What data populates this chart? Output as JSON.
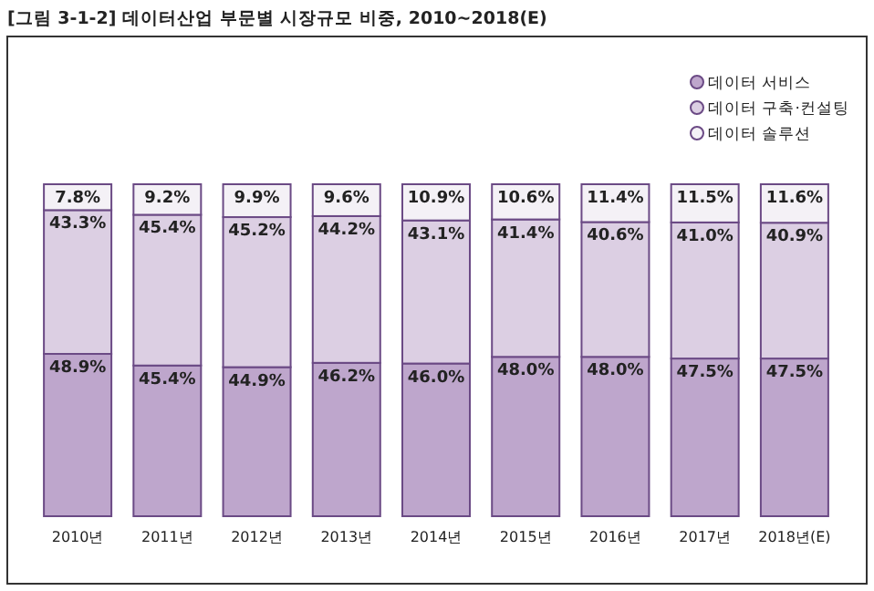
{
  "chart_data": {
    "type": "bar",
    "title": "[그림 3-1-2] 데이터산업 부문별 시장규모 비중, 2010~2018(E)",
    "stacked": true,
    "legend": "top right",
    "categories": [
      "2010년",
      "2011년",
      "2012년",
      "2013년",
      "2014년",
      "2015년",
      "2016년",
      "2017년",
      "2018년(E)"
    ],
    "series": [
      {
        "name": "데이터 서비스",
        "color": "#bea6cc",
        "values": [
          48.9,
          45.4,
          44.9,
          46.2,
          46.0,
          48.0,
          48.0,
          47.5,
          47.5
        ],
        "value_labels": [
          "48.9%",
          "45.4%",
          "44.9%",
          "46.2%",
          "46.0%",
          "48.0%",
          "48.0%",
          "47.5%",
          "47.5%"
        ]
      },
      {
        "name": "데이터 구축·컨설팅",
        "color": "#dccfe3",
        "values": [
          43.3,
          45.4,
          45.2,
          44.2,
          43.1,
          41.4,
          40.6,
          41.0,
          40.9
        ],
        "value_labels": [
          "43.3%",
          "45.4%",
          "45.2%",
          "44.2%",
          "43.1%",
          "41.4%",
          "40.6%",
          "41.0%",
          "40.9%"
        ]
      },
      {
        "name": "데이터 솔루션",
        "color": "#f4f1f6",
        "values": [
          7.8,
          9.2,
          9.9,
          9.6,
          10.9,
          10.6,
          11.4,
          11.5,
          11.6
        ],
        "value_labels": [
          "7.8%",
          "9.2%",
          "9.9%",
          "9.6%",
          "10.9%",
          "10.6%",
          "11.4%",
          "11.5%",
          "11.6%"
        ]
      }
    ]
  }
}
